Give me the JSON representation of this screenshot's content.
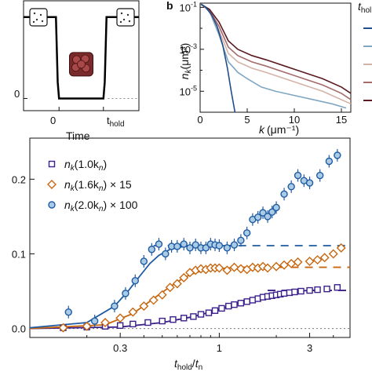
{
  "chart_data": [
    {
      "panel": "a",
      "type": "line",
      "xlabel": "Time",
      "x_ticks": [
        "0",
        "t_hold"
      ],
      "y_ticks": [
        "0"
      ],
      "xlim": [
        -0.8,
        1.8
      ],
      "ylim": [
        -0.15,
        1.2
      ],
      "potential_profile": {
        "x": [
          -0.8,
          -0.07,
          -0.03,
          0.0,
          1.0,
          1.03,
          1.07,
          1.8
        ],
        "y": [
          1.0,
          1.0,
          0.2,
          0.0,
          0.0,
          0.2,
          1.0,
          1.0
        ]
      }
    },
    {
      "panel": "b",
      "type": "line",
      "label": "b",
      "xlabel_main": "k",
      "xlabel_unit": "(μm⁻¹)",
      "ylabel_main": "n",
      "ylabel_sub": "k",
      "ylabel_unit": "(μm³)",
      "legend_title_fragment": "t",
      "legend_title_sub": "hol",
      "y_scale": "log",
      "xlim": [
        0,
        16
      ],
      "ylim_exp": [
        -6,
        -0.8
      ],
      "x_ticks": [
        0,
        5,
        10,
        15
      ],
      "y_ticks": [
        {
          "exp": -1,
          "label": "10",
          "sup": "-1"
        },
        {
          "exp": -3,
          "label": "10",
          "sup": "-3"
        },
        {
          "exp": -5,
          "label": "10",
          "sup": "-5"
        }
      ],
      "series": [
        {
          "color": "#1f4e8c",
          "k": [
            0.1,
            0.6,
            1.2,
            1.8,
            2.4,
            2.9,
            3.3,
            3.7
          ],
          "log_n": [
            -0.85,
            -1.0,
            -1.35,
            -1.9,
            -2.8,
            -3.9,
            -5.0,
            -6.0
          ]
        },
        {
          "color": "#7fa7c4",
          "k": [
            0.1,
            1.0,
            2.0,
            3.0,
            4.0,
            5.0,
            6.5,
            8.0,
            10.0,
            12.0,
            14.0,
            15.5
          ],
          "log_n": [
            -0.85,
            -1.2,
            -2.3,
            -3.6,
            -4.1,
            -4.4,
            -4.8,
            -5.0,
            -5.2,
            -5.4,
            -5.6,
            -5.8
          ]
        },
        {
          "color": "#d4b3a7",
          "k": [
            0.1,
            1.0,
            2.0,
            3.0,
            4.0,
            5.5,
            7.0,
            9.0,
            11.0,
            13.0,
            15.0,
            16.0
          ],
          "log_n": [
            -0.85,
            -1.2,
            -2.1,
            -3.2,
            -3.6,
            -3.9,
            -4.1,
            -4.4,
            -4.7,
            -5.0,
            -5.4,
            -5.6
          ]
        },
        {
          "color": "#a56b6b",
          "k": [
            0.1,
            1.0,
            2.0,
            3.0,
            4.0,
            5.5,
            7.0,
            9.0,
            11.0,
            13.0,
            15.0,
            16.0
          ],
          "log_n": [
            -0.85,
            -1.15,
            -1.9,
            -2.9,
            -3.3,
            -3.6,
            -3.8,
            -4.1,
            -4.4,
            -4.7,
            -5.1,
            -5.4
          ]
        },
        {
          "color": "#5a1a22",
          "k": [
            0.1,
            1.0,
            2.0,
            3.0,
            4.0,
            5.5,
            7.0,
            9.0,
            11.0,
            13.0,
            15.0,
            16.0
          ],
          "log_n": [
            -0.85,
            -1.1,
            -1.7,
            -2.6,
            -3.0,
            -3.3,
            -3.5,
            -3.8,
            -4.1,
            -4.4,
            -4.8,
            -5.1
          ]
        }
      ]
    },
    {
      "panel": "c",
      "type": "scatter",
      "x_scale": "log",
      "xlabel_main": "t",
      "xlabel_sub": "hold",
      "xlabel_sep": "/",
      "xlabel_main2": "t",
      "xlabel_sub2": "n",
      "xlim": [
        0.1,
        4.9
      ],
      "ylim": [
        -0.012,
        0.255
      ],
      "x_ticks": [
        {
          "v": 0.3,
          "label": "0.3"
        },
        {
          "v": 1,
          "label": "1"
        },
        {
          "v": 3,
          "label": "3"
        }
      ],
      "y_ticks": [
        {
          "v": 0.0,
          "label": "0.0"
        },
        {
          "v": 0.1,
          "label": "0.1"
        },
        {
          "v": 0.2,
          "label": "0.2"
        }
      ],
      "legend": [
        {
          "marker": "square",
          "color": "#3b1f8a",
          "prefix": "n",
          "sub": "k",
          "mid": "(1.0k",
          "sub2": "n",
          "suffix": ")"
        },
        {
          "marker": "diamond",
          "color": "#c8670f",
          "prefix": "n",
          "sub": "k",
          "mid": "(1.6k",
          "sub2": "n",
          "suffix": ") × 15"
        },
        {
          "marker": "circle",
          "color": "#1f5ba3",
          "prefix": "n",
          "sub": "k",
          "mid": "(2.0k",
          "sub2": "n",
          "suffix": ") × 100"
        }
      ],
      "series": [
        {
          "name": "n_k(1.0k_n)",
          "marker": "square",
          "color": "#3b1f8a",
          "x": [
            0.15,
            0.2,
            0.25,
            0.3,
            0.35,
            0.42,
            0.5,
            0.57,
            0.65,
            0.73,
            0.8,
            0.88,
            0.95,
            1.03,
            1.12,
            1.2,
            1.3,
            1.4,
            1.5,
            1.6,
            1.7,
            1.8,
            1.9,
            2.0,
            2.1,
            2.2,
            2.35,
            2.5,
            2.7,
            3.0,
            3.3,
            3.7,
            4.2
          ],
          "y": [
            0.001,
            0.002,
            0.003,
            0.004,
            0.006,
            0.008,
            0.01,
            0.012,
            0.014,
            0.016,
            0.019,
            0.021,
            0.024,
            0.027,
            0.03,
            0.032,
            0.034,
            0.036,
            0.038,
            0.04,
            0.042,
            0.043,
            0.044,
            0.045,
            0.046,
            0.047,
            0.048,
            0.049,
            0.05,
            0.051,
            0.052,
            0.053,
            0.055
          ],
          "fit": {
            "x": [
              0.1,
              0.3,
              0.5,
              0.7,
              0.9,
              1.1,
              1.3,
              1.5,
              1.8,
              2.1,
              2.5,
              3.0,
              3.3
            ],
            "y": [
              0.0,
              0.002,
              0.008,
              0.015,
              0.022,
              0.029,
              0.035,
              0.04,
              0.045,
              0.048,
              0.05,
              0.051,
              0.051
            ]
          },
          "plateau": {
            "x": [
              1.8,
              4.9
            ],
            "y": 0.051
          }
        },
        {
          "name": "n_k(1.6k_n) × 15",
          "marker": "diamond",
          "color": "#c8670f",
          "x": [
            0.15,
            0.2,
            0.25,
            0.3,
            0.35,
            0.4,
            0.45,
            0.5,
            0.55,
            0.6,
            0.65,
            0.7,
            0.75,
            0.8,
            0.85,
            0.9,
            0.95,
            1.0,
            1.1,
            1.2,
            1.3,
            1.4,
            1.5,
            1.6,
            1.7,
            1.8,
            2.0,
            2.2,
            2.4,
            2.6,
            3.0,
            3.3,
            3.6,
            4.0,
            4.4
          ],
          "y": [
            0.001,
            0.003,
            0.008,
            0.014,
            0.022,
            0.03,
            0.038,
            0.045,
            0.055,
            0.06,
            0.068,
            0.075,
            0.078,
            0.08,
            0.079,
            0.081,
            0.081,
            0.081,
            0.078,
            0.082,
            0.08,
            0.079,
            0.082,
            0.081,
            0.083,
            0.081,
            0.083,
            0.085,
            0.087,
            0.089,
            0.09,
            0.092,
            0.095,
            0.1,
            0.108
          ],
          "fit": {
            "x": [
              0.1,
              0.25,
              0.35,
              0.45,
              0.55,
              0.65,
              0.75,
              0.9,
              1.1,
              1.3,
              1.5
            ],
            "y": [
              0.0,
              0.005,
              0.02,
              0.04,
              0.056,
              0.068,
              0.075,
              0.079,
              0.081,
              0.082,
              0.082
            ]
          },
          "plateau": {
            "x": [
              1.2,
              4.9
            ],
            "y": 0.082
          }
        },
        {
          "name": "n_k(2.0k_n) × 100",
          "marker": "circle",
          "color": "#1f5ba3",
          "x": [
            0.16,
            0.22,
            0.28,
            0.32,
            0.36,
            0.4,
            0.44,
            0.48,
            0.52,
            0.56,
            0.6,
            0.65,
            0.7,
            0.75,
            0.8,
            0.85,
            0.9,
            0.95,
            1.0,
            1.1,
            1.2,
            1.3,
            1.4,
            1.5,
            1.6,
            1.7,
            1.8,
            1.9,
            2.0,
            2.2,
            2.4,
            2.6,
            2.8,
            3.0,
            3.4,
            3.8,
            4.2
          ],
          "y": [
            0.022,
            0.01,
            0.03,
            0.047,
            0.064,
            0.09,
            0.106,
            0.113,
            0.1,
            0.11,
            0.11,
            0.113,
            0.108,
            0.112,
            0.108,
            0.108,
            0.113,
            0.112,
            0.111,
            0.108,
            0.112,
            0.118,
            0.128,
            0.146,
            0.149,
            0.155,
            0.15,
            0.156,
            0.162,
            0.18,
            0.19,
            0.205,
            0.198,
            0.195,
            0.205,
            0.224,
            0.232
          ],
          "fit": {
            "x": [
              0.1,
              0.2,
              0.28,
              0.33,
              0.38,
              0.43,
              0.48,
              0.55,
              0.65,
              0.8,
              1.0,
              1.2
            ],
            "y": [
              0.001,
              0.008,
              0.03,
              0.05,
              0.07,
              0.087,
              0.098,
              0.106,
              0.11,
              0.111,
              0.111,
              0.111
            ]
          },
          "plateau": {
            "x": [
              0.45,
              4.9
            ],
            "y": 0.111
          }
        }
      ]
    }
  ]
}
